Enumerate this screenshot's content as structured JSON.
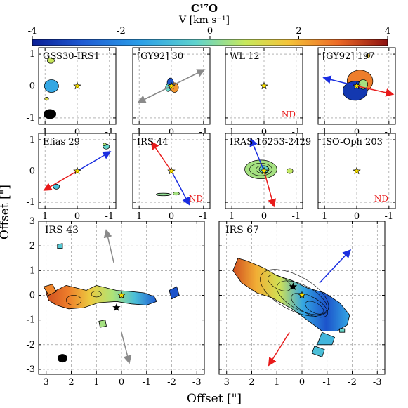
{
  "colorbar": {
    "title": "C¹⁷O",
    "unit_label": "V [km s⁻¹]",
    "ticks": [
      "-4",
      "-2",
      "0",
      "2",
      "4"
    ],
    "range": [
      -4,
      4
    ],
    "colormap": "jet",
    "stops": [
      "#0a1e96",
      "#1f5ad2",
      "#2a9de8",
      "#5fd3ce",
      "#c7e85c",
      "#f4c43a",
      "#ec6a26",
      "#8c1010"
    ]
  },
  "axes": {
    "xlabel": "Offset [\"]",
    "ylabel": "Offset [\"]"
  },
  "chart_data": [
    {
      "type": "heatmap",
      "title": "GSS30-IRS1",
      "xlim": [
        1.2,
        -1.2
      ],
      "ylim": [
        -1.2,
        1.2
      ],
      "xticks": [
        "1",
        "0",
        "-1"
      ],
      "yticks": [
        "1",
        "0",
        "-1"
      ],
      "velocity_blobs": [
        {
          "x": 0.8,
          "y": 0.0,
          "v": -1.5
        },
        {
          "x": 0.82,
          "y": 0.8,
          "v": 0.6
        }
      ],
      "source_markers": [
        {
          "x": 0,
          "y": 0
        }
      ],
      "beam": "yes"
    },
    {
      "type": "heatmap",
      "title": "[GY92] 30",
      "xlim": [
        1.2,
        -1.2
      ],
      "ylim": [
        -1.2,
        1.2
      ],
      "xticks": [
        "1",
        "0",
        "-1"
      ],
      "yticks": [],
      "velocity_blobs": [
        {
          "x": 0.0,
          "y": 0.05,
          "v": -2.5
        },
        {
          "x": -0.1,
          "y": -0.05,
          "v": 2.0
        }
      ],
      "outflow": [
        {
          "from": [
            1.0,
            -0.5
          ],
          "to": [
            -1.0,
            0.5
          ],
          "color": "gray"
        }
      ]
    },
    {
      "type": "heatmap",
      "title": "WL 12",
      "xlim": [
        1.2,
        -1.2
      ],
      "ylim": [
        -1.2,
        1.2
      ],
      "xticks": [
        "1",
        "0",
        "-1"
      ],
      "yticks": [],
      "note": "ND"
    },
    {
      "type": "heatmap",
      "title": "[GY92] 197",
      "xlim": [
        1.2,
        -1.2
      ],
      "ylim": [
        -1.2,
        1.2
      ],
      "xticks": [
        "1",
        "0",
        "-1"
      ],
      "yticks": [],
      "velocity_blobs": [
        {
          "x": -0.1,
          "y": 0.1,
          "v": 2.5
        },
        {
          "x": 0.05,
          "y": -0.15,
          "v": -3.5
        }
      ],
      "outflow": [
        {
          "from": [
            0,
            0
          ],
          "to": [
            1.0,
            0.25
          ],
          "color": "blue"
        },
        {
          "from": [
            0,
            0
          ],
          "to": [
            -1.1,
            -0.25
          ],
          "color": "red"
        }
      ]
    },
    {
      "type": "heatmap",
      "title": "Elias 29",
      "xlim": [
        1.2,
        -1.2
      ],
      "ylim": [
        -1.2,
        1.2
      ],
      "xticks": [
        "1",
        "0",
        "-1"
      ],
      "yticks": [
        "1",
        "0",
        "-1"
      ],
      "velocity_blobs": [
        {
          "x": 0.65,
          "y": -0.5,
          "v": -1.0
        },
        {
          "x": -0.9,
          "y": 0.78,
          "v": -0.5
        }
      ],
      "outflow": [
        {
          "from": [
            0,
            0
          ],
          "to": [
            -1.0,
            0.6
          ],
          "color": "blue"
        },
        {
          "from": [
            0,
            0
          ],
          "to": [
            1.0,
            -0.6
          ],
          "color": "red"
        }
      ]
    },
    {
      "type": "heatmap",
      "title": "IRS 44",
      "xlim": [
        1.2,
        -1.2
      ],
      "ylim": [
        -1.2,
        1.2
      ],
      "xticks": [
        "1",
        "0",
        "-1"
      ],
      "yticks": [],
      "note": "ND",
      "velocity_blobs": [
        {
          "x": 0.3,
          "y": -0.75,
          "v": 0.0
        },
        {
          "x": -0.15,
          "y": -0.72,
          "v": 0.2
        }
      ],
      "outflow": [
        {
          "from": [
            0,
            0
          ],
          "to": [
            0.6,
            0.9
          ],
          "color": "red"
        },
        {
          "from": [
            0,
            0
          ],
          "to": [
            -0.55,
            -1.05
          ],
          "color": "blue"
        }
      ]
    },
    {
      "type": "heatmap",
      "title": "IRAS 16253-2429",
      "xlim": [
        1.2,
        -1.2
      ],
      "ylim": [
        -1.2,
        1.2
      ],
      "xticks": [
        "1",
        "0",
        "-1"
      ],
      "yticks": [],
      "velocity_blobs": [
        {
          "x": 0.1,
          "y": 0.05,
          "v": 0.2
        },
        {
          "x": -0.8,
          "y": 0.0,
          "v": 0.4
        }
      ],
      "outflow": [
        {
          "from": [
            0,
            0
          ],
          "to": [
            0.4,
            1.0
          ],
          "color": "blue"
        },
        {
          "from": [
            0,
            0
          ],
          "to": [
            -0.3,
            -1.1
          ],
          "color": "red"
        }
      ]
    },
    {
      "type": "heatmap",
      "title": "ISO-Oph 203",
      "xlim": [
        1.2,
        -1.2
      ],
      "ylim": [
        -1.2,
        1.2
      ],
      "xticks": [
        "1",
        "0",
        "-1"
      ],
      "yticks": [],
      "note": "ND"
    },
    {
      "type": "heatmap",
      "title": "IRS 43",
      "xlim": [
        3.3,
        -3.3
      ],
      "ylim": [
        -3.2,
        3.0
      ],
      "xticks": [
        "3",
        "2",
        "1",
        "0",
        "-1",
        "-2",
        "-3"
      ],
      "yticks": [
        "3",
        "2",
        "1",
        "0",
        "-1",
        "-2",
        "-3"
      ],
      "velocity_blobs": [
        {
          "x": 2.0,
          "y": -0.2,
          "v": 3.2
        },
        {
          "x": 1.0,
          "y": 0.0,
          "v": 1.8
        },
        {
          "x": 0.0,
          "y": 0.0,
          "v": 0.0
        },
        {
          "x": -1.0,
          "y": -0.1,
          "v": -2.5
        }
      ],
      "source_markers": [
        {
          "x": 0,
          "y": 0
        },
        {
          "x": 0.2,
          "y": -0.5
        }
      ],
      "outflow": [
        {
          "from": [
            0.3,
            1.3
          ],
          "to": [
            0.6,
            2.6
          ],
          "color": "gray"
        },
        {
          "from": [
            0.0,
            -1.5
          ],
          "to": [
            -0.3,
            -2.7
          ],
          "color": "gray"
        }
      ],
      "beam": "yes"
    },
    {
      "type": "heatmap",
      "title": "IRS 67",
      "xlim": [
        3.3,
        -3.3
      ],
      "ylim": [
        -3.2,
        3.0
      ],
      "xticks": [
        "3",
        "2",
        "1",
        "0",
        "-1",
        "-2",
        "-3"
      ],
      "yticks": [],
      "velocity_blobs": [
        {
          "x": 1.8,
          "y": 0.9,
          "v": 3.0
        },
        {
          "x": 0.5,
          "y": 0.2,
          "v": 0.5
        },
        {
          "x": -0.5,
          "y": -0.5,
          "v": -2.5
        },
        {
          "x": -1.3,
          "y": -1.3,
          "v": -1.5
        }
      ],
      "source_markers": [
        {
          "x": 0,
          "y": 0
        },
        {
          "x": 0.35,
          "y": 0.35
        }
      ],
      "outflow": [
        {
          "from": [
            -0.7,
            0.5
          ],
          "to": [
            -1.9,
            1.8
          ],
          "color": "blue"
        },
        {
          "from": [
            0.5,
            -1.5
          ],
          "to": [
            1.3,
            -2.8
          ],
          "color": "red"
        }
      ]
    }
  ]
}
